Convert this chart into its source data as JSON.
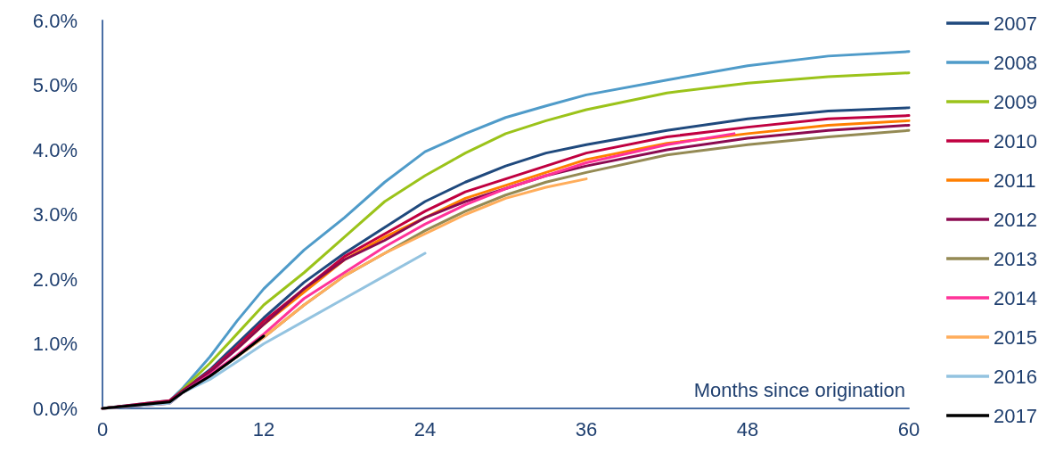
{
  "chart_data": {
    "type": "line",
    "xlabel": "Months since origination",
    "xlim": [
      0,
      60
    ],
    "xticks": [
      0,
      12,
      24,
      36,
      48,
      60
    ],
    "ylim": [
      0,
      6
    ],
    "yticks": [
      {
        "value": 0,
        "label": "0.0%"
      },
      {
        "value": 1,
        "label": "1.0%"
      },
      {
        "value": 2,
        "label": "2.0%"
      },
      {
        "value": 3,
        "label": "3.0%"
      },
      {
        "value": 4,
        "label": "4.0%"
      },
      {
        "value": 5,
        "label": "5.0%"
      },
      {
        "value": 6,
        "label": "6.0%"
      }
    ],
    "grid": false,
    "legend": "right",
    "marker": "none",
    "line_style": "solid",
    "series": [
      {
        "name": "2007",
        "color": "#1f497d",
        "x": [
          0,
          5,
          6,
          8,
          10,
          12,
          15,
          18,
          21,
          24,
          27,
          30,
          33,
          36,
          42,
          48,
          54,
          60
        ],
        "values": [
          0,
          0.1,
          0.28,
          0.6,
          1.0,
          1.4,
          1.95,
          2.4,
          2.8,
          3.2,
          3.5,
          3.75,
          3.95,
          4.08,
          4.3,
          4.48,
          4.6,
          4.65
        ]
      },
      {
        "name": "2008",
        "color": "#4f9bc9",
        "x": [
          0,
          5,
          6,
          8,
          10,
          12,
          15,
          18,
          21,
          24,
          27,
          30,
          33,
          36,
          42,
          48,
          54,
          60
        ],
        "values": [
          0,
          0.12,
          0.32,
          0.8,
          1.35,
          1.85,
          2.45,
          2.95,
          3.5,
          3.97,
          4.25,
          4.5,
          4.68,
          4.85,
          5.08,
          5.3,
          5.45,
          5.52
        ]
      },
      {
        "name": "2009",
        "color": "#9bc31a",
        "x": [
          0,
          5,
          6,
          8,
          10,
          12,
          15,
          18,
          21,
          24,
          27,
          30,
          33,
          36,
          42,
          48,
          54,
          60
        ],
        "values": [
          0,
          0.1,
          0.3,
          0.7,
          1.15,
          1.6,
          2.1,
          2.65,
          3.2,
          3.6,
          3.95,
          4.25,
          4.45,
          4.62,
          4.88,
          5.03,
          5.13,
          5.19
        ]
      },
      {
        "name": "2010",
        "color": "#c00040",
        "x": [
          0,
          5,
          6,
          8,
          10,
          12,
          15,
          18,
          21,
          24,
          27,
          30,
          33,
          36,
          42,
          48,
          54,
          60
        ],
        "values": [
          0,
          0.12,
          0.28,
          0.58,
          0.95,
          1.35,
          1.85,
          2.35,
          2.7,
          3.05,
          3.35,
          3.55,
          3.75,
          3.95,
          4.2,
          4.35,
          4.48,
          4.53
        ]
      },
      {
        "name": "2011",
        "color": "#ff7f00",
        "x": [
          10,
          12,
          15,
          18,
          21,
          24,
          27,
          30,
          33,
          36,
          42,
          48,
          54,
          60
        ],
        "values": [
          0.92,
          1.3,
          1.8,
          2.3,
          2.65,
          2.95,
          3.25,
          3.45,
          3.65,
          3.85,
          4.1,
          4.25,
          4.38,
          4.45
        ]
      },
      {
        "name": "2012",
        "color": "#8b0a50",
        "x": [
          0,
          5,
          6,
          8,
          10,
          12,
          15,
          18,
          21,
          24,
          27,
          30,
          33,
          36,
          42,
          48,
          54,
          60
        ],
        "values": [
          0,
          0.1,
          0.27,
          0.56,
          0.92,
          1.3,
          1.85,
          2.3,
          2.6,
          2.95,
          3.2,
          3.4,
          3.6,
          3.75,
          4.0,
          4.18,
          4.3,
          4.38
        ]
      },
      {
        "name": "2013",
        "color": "#948a54",
        "x": [
          0,
          5,
          6,
          8,
          10,
          12,
          15,
          18,
          21,
          24,
          27,
          30,
          33,
          36,
          42,
          48,
          54,
          60
        ],
        "values": [
          0,
          0.08,
          0.25,
          0.5,
          0.8,
          1.1,
          1.6,
          2.05,
          2.4,
          2.75,
          3.05,
          3.3,
          3.5,
          3.65,
          3.92,
          4.08,
          4.2,
          4.3
        ]
      },
      {
        "name": "2014",
        "color": "#ff3399",
        "x": [
          0,
          5,
          6,
          8,
          10,
          12,
          15,
          18,
          21,
          24,
          27,
          30,
          33,
          36,
          42,
          47
        ],
        "values": [
          0,
          0.08,
          0.25,
          0.52,
          0.82,
          1.15,
          1.7,
          2.1,
          2.5,
          2.85,
          3.15,
          3.4,
          3.6,
          3.8,
          4.08,
          4.25
        ]
      },
      {
        "name": "2015",
        "color": "#ffad5b",
        "x": [
          10,
          12,
          15,
          18,
          21,
          24,
          27,
          30,
          33,
          36
        ],
        "values": [
          0.8,
          1.1,
          1.6,
          2.05,
          2.4,
          2.7,
          3.0,
          3.25,
          3.42,
          3.55
        ]
      },
      {
        "name": "2016",
        "color": "#93c3e0",
        "x": [
          0,
          5,
          6,
          8,
          10,
          12,
          15,
          18,
          21,
          24
        ],
        "values": [
          0,
          0.08,
          0.25,
          0.45,
          0.72,
          1.0,
          1.35,
          1.7,
          2.05,
          2.4
        ]
      },
      {
        "name": "2017",
        "color": "#000000",
        "x": [
          0,
          5,
          6,
          8,
          10,
          12
        ],
        "values": [
          0,
          0.1,
          0.25,
          0.5,
          0.8,
          1.12
        ]
      }
    ]
  }
}
